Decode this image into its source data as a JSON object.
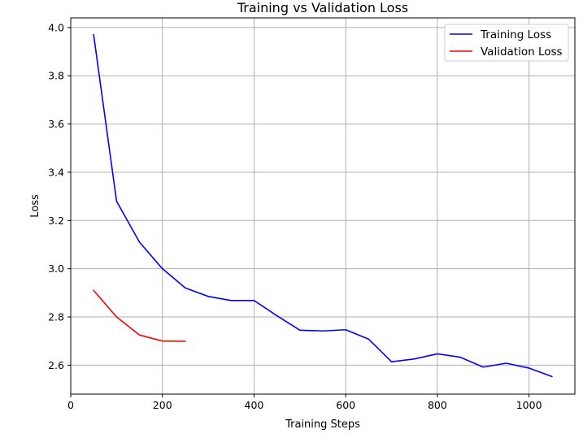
{
  "chart_data": {
    "type": "line",
    "title": "Training vs Validation Loss",
    "xlabel": "Training Steps",
    "ylabel": "Loss",
    "xlim": [
      0,
      1100
    ],
    "ylim": [
      2.48,
      4.04
    ],
    "xticks": [
      0,
      200,
      400,
      600,
      800,
      1000
    ],
    "yticks": [
      2.6,
      2.8,
      3.0,
      3.2,
      3.4,
      3.6,
      3.8,
      4.0
    ],
    "xtick_labels": [
      "0",
      "200",
      "400",
      "600",
      "800",
      "1000"
    ],
    "ytick_labels": [
      "2.6",
      "2.8",
      "3.0",
      "3.2",
      "3.4",
      "3.6",
      "3.8",
      "4.0"
    ],
    "grid": true,
    "legend_position": "top-right",
    "series": [
      {
        "name": "Training Loss",
        "color": "#0000ff",
        "x": [
          50,
          100,
          150,
          200,
          250,
          300,
          350,
          400,
          450,
          500,
          550,
          600,
          650,
          700,
          750,
          800,
          850,
          900,
          950,
          1000,
          1050
        ],
        "y": [
          3.97,
          3.28,
          3.11,
          3.0,
          2.92,
          2.885,
          2.868,
          2.868,
          2.805,
          2.745,
          2.742,
          2.747,
          2.708,
          2.614,
          2.626,
          2.647,
          2.633,
          2.592,
          2.608,
          2.588,
          2.553
        ]
      },
      {
        "name": "Validation Loss",
        "color": "#ff0000",
        "x": [
          50,
          100,
          150,
          200,
          250
        ],
        "y": [
          2.91,
          2.8,
          2.725,
          2.7,
          2.699
        ]
      }
    ]
  }
}
